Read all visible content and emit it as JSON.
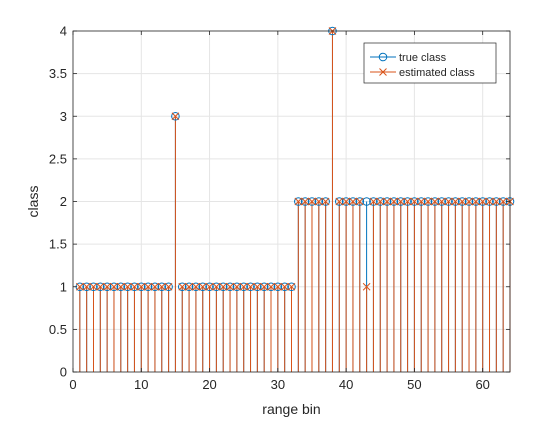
{
  "chart_data": {
    "type": "stem",
    "title": "",
    "xlabel": "range bin",
    "ylabel": "class",
    "xlim": [
      0,
      64
    ],
    "ylim": [
      0,
      4
    ],
    "xticks": [
      "0",
      "10",
      "20",
      "30",
      "40",
      "50",
      "60"
    ],
    "yticks": [
      "0",
      "0.5",
      "1",
      "1.5",
      "2",
      "2.5",
      "3",
      "3.5",
      "4"
    ],
    "grid": true,
    "legend_position": "top-right",
    "colors": {
      "true_class": "#0072bd",
      "estimated_class": "#d95319",
      "grid": "#e5e5e5",
      "axes": "#262626"
    },
    "x": [
      1,
      2,
      3,
      4,
      5,
      6,
      7,
      8,
      9,
      10,
      11,
      12,
      13,
      14,
      15,
      16,
      17,
      18,
      19,
      20,
      21,
      22,
      23,
      24,
      25,
      26,
      27,
      28,
      29,
      30,
      31,
      32,
      33,
      34,
      35,
      36,
      37,
      38,
      39,
      40,
      41,
      42,
      43,
      44,
      45,
      46,
      47,
      48,
      49,
      50,
      51,
      52,
      53,
      54,
      55,
      56,
      57,
      58,
      59,
      60,
      61,
      62,
      63,
      64
    ],
    "series": [
      {
        "name": "true class",
        "marker": "circle",
        "values": [
          1,
          1,
          1,
          1,
          1,
          1,
          1,
          1,
          1,
          1,
          1,
          1,
          1,
          1,
          3,
          1,
          1,
          1,
          1,
          1,
          1,
          1,
          1,
          1,
          1,
          1,
          1,
          1,
          1,
          1,
          1,
          1,
          2,
          2,
          2,
          2,
          2,
          4,
          2,
          2,
          2,
          2,
          2,
          2,
          2,
          2,
          2,
          2,
          2,
          2,
          2,
          2,
          2,
          2,
          2,
          2,
          2,
          2,
          2,
          2,
          2,
          2,
          2,
          2
        ]
      },
      {
        "name": "estimated class",
        "marker": "x",
        "values": [
          1,
          1,
          1,
          1,
          1,
          1,
          1,
          1,
          1,
          1,
          1,
          1,
          1,
          1,
          3,
          1,
          1,
          1,
          1,
          1,
          1,
          1,
          1,
          1,
          1,
          1,
          1,
          1,
          1,
          1,
          1,
          1,
          2,
          2,
          2,
          2,
          2,
          4,
          2,
          2,
          2,
          2,
          1,
          2,
          2,
          2,
          2,
          2,
          2,
          2,
          2,
          2,
          2,
          2,
          2,
          2,
          2,
          2,
          2,
          2,
          2,
          2,
          2,
          2
        ]
      }
    ]
  }
}
